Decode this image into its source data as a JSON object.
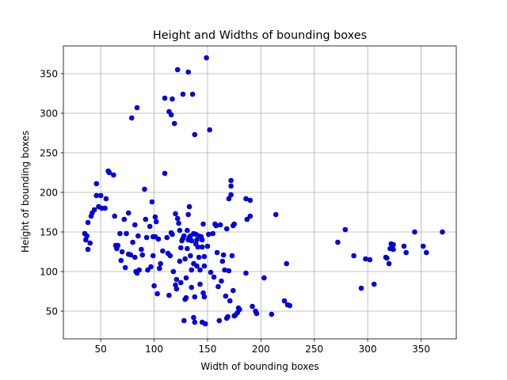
{
  "chart_data": {
    "type": "scatter",
    "title": "Height and Widths of bounding boxes",
    "xlabel": "Width of bounding boxes",
    "ylabel": "Height of bounding boxes",
    "xlim": [
      15,
      383
    ],
    "ylim": [
      15,
      385
    ],
    "xticks": [
      50,
      100,
      150,
      200,
      250,
      300,
      350
    ],
    "yticks": [
      50,
      100,
      150,
      200,
      250,
      300,
      350
    ],
    "grid": true,
    "marker_color": "#0000ff",
    "marker_edge_color": "#000080",
    "points": [
      [
        35,
        148
      ],
      [
        36,
        140
      ],
      [
        37,
        145
      ],
      [
        38,
        162
      ],
      [
        38,
        128
      ],
      [
        40,
        136
      ],
      [
        41,
        170
      ],
      [
        42,
        174
      ],
      [
        44,
        178
      ],
      [
        46,
        211
      ],
      [
        46,
        196
      ],
      [
        48,
        182
      ],
      [
        50,
        196
      ],
      [
        51,
        180
      ],
      [
        54,
        180
      ],
      [
        55,
        192
      ],
      [
        57,
        227
      ],
      [
        58,
        225
      ],
      [
        62,
        222
      ],
      [
        63,
        170
      ],
      [
        64,
        133
      ],
      [
        65,
        129
      ],
      [
        66,
        133
      ],
      [
        68,
        148
      ],
      [
        69,
        114
      ],
      [
        70,
        125
      ],
      [
        72,
        166
      ],
      [
        73,
        105
      ],
      [
        74,
        148
      ],
      [
        76,
        174
      ],
      [
        76,
        122
      ],
      [
        78,
        121
      ],
      [
        79,
        294
      ],
      [
        80,
        137
      ],
      [
        82,
        118
      ],
      [
        82,
        159
      ],
      [
        83,
        100
      ],
      [
        84,
        307
      ],
      [
        84,
        98
      ],
      [
        85,
        145
      ],
      [
        86,
        102
      ],
      [
        88,
        128
      ],
      [
        89,
        121
      ],
      [
        91,
        204
      ],
      [
        92,
        166
      ],
      [
        93,
        143
      ],
      [
        94,
        102
      ],
      [
        96,
        157
      ],
      [
        97,
        106
      ],
      [
        98,
        188
      ],
      [
        99,
        144
      ],
      [
        99,
        120
      ],
      [
        100,
        82
      ],
      [
        101,
        144
      ],
      [
        101,
        169
      ],
      [
        102,
        163
      ],
      [
        103,
        72
      ],
      [
        104,
        141
      ],
      [
        105,
        104
      ],
      [
        106,
        110
      ],
      [
        108,
        126
      ],
      [
        110,
        319
      ],
      [
        110,
        224
      ],
      [
        112,
        143
      ],
      [
        113,
        123
      ],
      [
        114,
        70
      ],
      [
        114,
        302
      ],
      [
        115,
        120
      ],
      [
        116,
        298
      ],
      [
        116,
        149
      ],
      [
        117,
        147
      ],
      [
        117,
        318
      ],
      [
        118,
        100
      ],
      [
        119,
        287
      ],
      [
        120,
        173
      ],
      [
        120,
        83
      ],
      [
        121,
        78
      ],
      [
        121,
        90
      ],
      [
        122,
        167
      ],
      [
        122,
        355
      ],
      [
        123,
        161
      ],
      [
        124,
        152
      ],
      [
        124,
        113
      ],
      [
        125,
        130
      ],
      [
        125,
        86
      ],
      [
        126,
        139
      ],
      [
        127,
        324
      ],
      [
        127,
        142
      ],
      [
        128,
        38
      ],
      [
        128,
        145
      ],
      [
        129,
        116
      ],
      [
        129,
        65
      ],
      [
        130,
        67
      ],
      [
        130,
        92
      ],
      [
        131,
        152
      ],
      [
        131,
        129
      ],
      [
        132,
        140
      ],
      [
        132,
        172
      ],
      [
        132,
        352
      ],
      [
        133,
        182
      ],
      [
        133,
        143
      ],
      [
        134,
        145
      ],
      [
        134,
        120
      ],
      [
        135,
        80
      ],
      [
        135,
        102
      ],
      [
        135,
        139
      ],
      [
        136,
        324
      ],
      [
        137,
        42
      ],
      [
        137,
        148
      ],
      [
        137,
        110
      ],
      [
        138,
        36
      ],
      [
        138,
        273
      ],
      [
        138,
        68
      ],
      [
        139,
        147
      ],
      [
        139,
        135
      ],
      [
        140,
        107
      ],
      [
        140,
        140
      ],
      [
        141,
        131
      ],
      [
        142,
        118
      ],
      [
        142,
        145
      ],
      [
        143,
        102
      ],
      [
        143,
        84
      ],
      [
        144,
        144
      ],
      [
        145,
        131
      ],
      [
        145,
        36
      ],
      [
        145,
        140
      ],
      [
        146,
        160
      ],
      [
        146,
        73
      ],
      [
        147,
        119
      ],
      [
        147,
        107
      ],
      [
        147,
        68
      ],
      [
        148,
        34
      ],
      [
        149,
        370
      ],
      [
        150,
        132
      ],
      [
        151,
        147
      ],
      [
        152,
        279
      ],
      [
        153,
        99
      ],
      [
        155,
        148
      ],
      [
        156,
        93
      ],
      [
        157,
        160
      ],
      [
        158,
        158
      ],
      [
        159,
        124
      ],
      [
        160,
        81
      ],
      [
        161,
        38
      ],
      [
        162,
        159
      ],
      [
        163,
        88
      ],
      [
        164,
        113
      ],
      [
        165,
        121
      ],
      [
        166,
        102
      ],
      [
        167,
        69
      ],
      [
        168,
        41
      ],
      [
        168,
        154
      ],
      [
        169,
        43
      ],
      [
        170,
        101
      ],
      [
        170,
        192
      ],
      [
        171,
        63
      ],
      [
        172,
        197
      ],
      [
        172,
        215
      ],
      [
        172,
        208
      ],
      [
        173,
        120
      ],
      [
        174,
        76
      ],
      [
        174,
        158
      ],
      [
        175,
        160
      ],
      [
        175,
        44
      ],
      [
        176,
        45
      ],
      [
        178,
        48
      ],
      [
        179,
        54
      ],
      [
        180,
        52
      ],
      [
        186,
        192
      ],
      [
        186,
        98
      ],
      [
        187,
        166
      ],
      [
        190,
        190
      ],
      [
        190,
        170
      ],
      [
        192,
        56
      ],
      [
        195,
        50
      ],
      [
        196,
        47
      ],
      [
        203,
        92
      ],
      [
        210,
        46
      ],
      [
        214,
        172
      ],
      [
        222,
        63
      ],
      [
        224,
        110
      ],
      [
        225,
        58
      ],
      [
        227,
        57
      ],
      [
        272,
        137
      ],
      [
        279,
        153
      ],
      [
        287,
        120
      ],
      [
        294,
        79
      ],
      [
        298,
        116
      ],
      [
        302,
        115
      ],
      [
        306,
        84
      ],
      [
        317,
        118
      ],
      [
        318,
        117
      ],
      [
        320,
        110
      ],
      [
        321,
        129
      ],
      [
        322,
        135
      ],
      [
        324,
        134
      ],
      [
        324,
        128
      ],
      [
        334,
        132
      ],
      [
        336,
        124
      ],
      [
        344,
        150
      ],
      [
        352,
        132
      ],
      [
        355,
        124
      ],
      [
        370,
        150
      ]
    ]
  }
}
